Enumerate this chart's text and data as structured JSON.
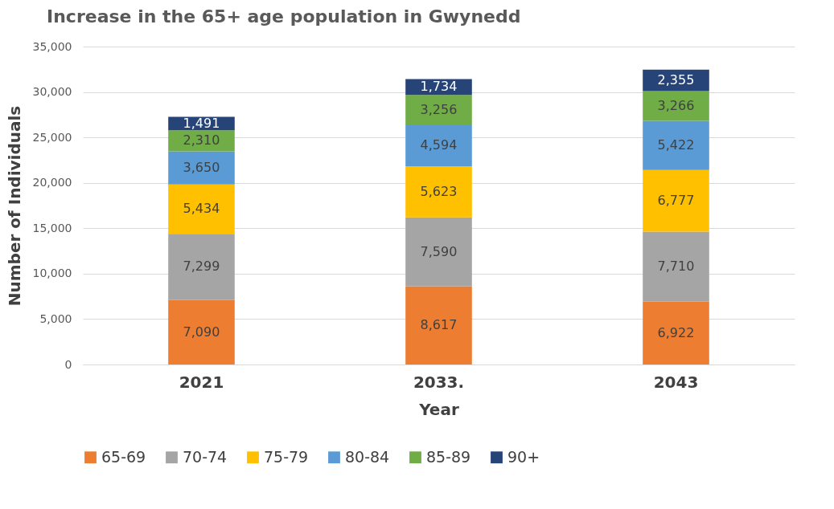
{
  "chart_data": {
    "type": "bar",
    "stacked": true,
    "title": "Increase in the 65+ age population in Gwynedd",
    "xlabel": "Year",
    "ylabel": "Number of Individuals",
    "categories": [
      "2021",
      "2033.",
      "2043"
    ],
    "series": [
      {
        "name": "65-69",
        "color": "#ed7d31",
        "values": [
          7090,
          8617,
          6922
        ],
        "value_labels": [
          "7,090",
          "8,617",
          "6,922"
        ]
      },
      {
        "name": "70-74",
        "color": "#a5a5a5",
        "values": [
          7299,
          7590,
          7710
        ],
        "value_labels": [
          "7,299",
          "7,590",
          "7,710"
        ]
      },
      {
        "name": "75-79",
        "color": "#ffc000",
        "values": [
          5434,
          5623,
          6777
        ],
        "value_labels": [
          "5,434",
          "5,623",
          "6,777"
        ]
      },
      {
        "name": "80-84",
        "color": "#5b9bd5",
        "values": [
          3650,
          4594,
          5422
        ],
        "value_labels": [
          "3,650",
          "4,594",
          "5,422"
        ]
      },
      {
        "name": "85-89",
        "color": "#70ad47",
        "values": [
          2310,
          3256,
          3266
        ],
        "value_labels": [
          "2,310",
          "3,256",
          "3,266"
        ]
      },
      {
        "name": "90+",
        "color": "#264478",
        "values": [
          1491,
          1734,
          2355
        ],
        "value_labels": [
          "1,491",
          "1,734",
          "2,355"
        ]
      }
    ],
    "ylim": [
      0,
      35000
    ],
    "yticks": [
      0,
      {
        "value": 5000,
        "label": "5,000"
      },
      {
        "value": 10000,
        "label": "10,000"
      },
      {
        "value": 15000,
        "label": "15,000"
      },
      {
        "value": 20000,
        "label": "20,000"
      },
      {
        "value": 25000,
        "label": "25,000"
      },
      {
        "value": 30000,
        "label": "30,000"
      },
      {
        "value": 35000,
        "label": "35,000"
      }
    ],
    "grid": "y",
    "legend": "bottom"
  }
}
